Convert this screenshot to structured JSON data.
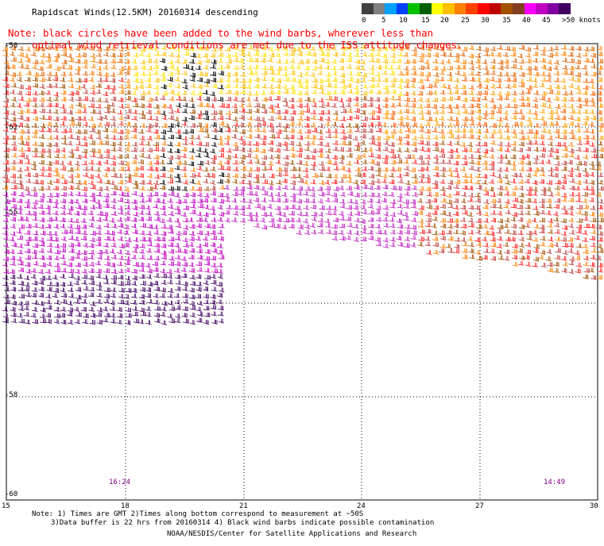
{
  "title": "Rapidscat Winds(12.5KM) 20160314 descending",
  "note_line1": "Note: black circles have been added to the wind barbs, wherever less than",
  "note_line2": "optimal wind retrieval conditions are met due to the ISS attitude changes.",
  "legend": {
    "labels": [
      "0",
      "5",
      "10",
      "15",
      "20",
      "25",
      "30",
      "35",
      "40",
      "45",
      ">50 knots"
    ],
    "colors": [
      "#404040",
      "#808080",
      "#00a0ff",
      "#0040ff",
      "#00c000",
      "#006000",
      "#ffff00",
      "#ffc000",
      "#ff8000",
      "#ff4000",
      "#ff0000",
      "#c00000",
      "#a05000",
      "#804020",
      "#ff00ff",
      "#c000c0",
      "#8000a0",
      "#400060"
    ]
  },
  "axes": {
    "lat_labels": [
      "-50",
      "-52",
      "-55",
      "-58",
      "-60"
    ],
    "lon_labels": [
      "15",
      "18",
      "21",
      "24",
      "27",
      "30"
    ]
  },
  "time_labels": [
    "16:24",
    "14:49"
  ],
  "footer": {
    "line1": "Note: 1) Times are GMT 2)Times along bottom correspond to measurement at ~50S",
    "line2": "3)Data buffer is 22 hrs from 20160314 4) Black wind barbs indicate possible contamination",
    "line3": "NOAA/NESDIS/Center for Satellite Applications and Research"
  }
}
